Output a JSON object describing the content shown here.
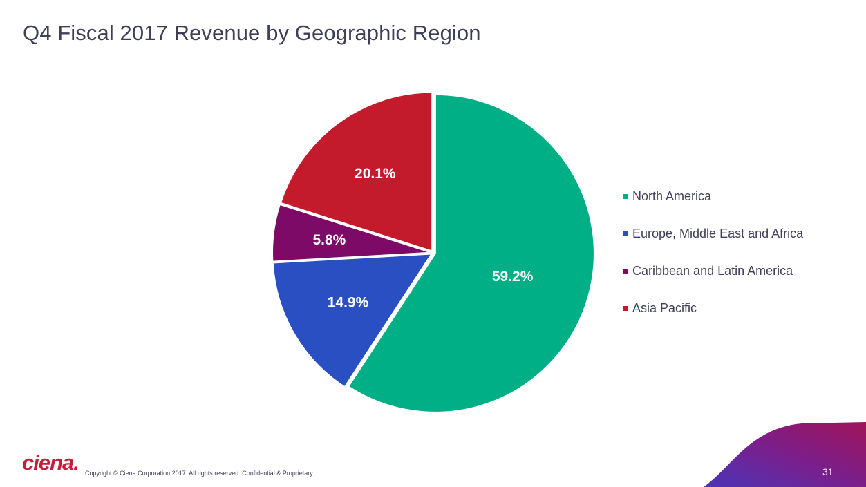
{
  "slide": {
    "title": "Q4 Fiscal 2017 Revenue by Geographic Region",
    "copyright": "Copyright © Ciena Corporation 2017. All rights reserved. Confidential & Proprietary.",
    "page_number": "31",
    "logo_text": "ciena."
  },
  "colors": {
    "north_america": "#00af85",
    "emea": "#2a4fc3",
    "cala": "#7d0a66",
    "apac": "#c41b2c",
    "brand_gradient_start": "#5a2fb0",
    "brand_gradient_end": "#a0145a"
  },
  "chart_data": {
    "type": "pie",
    "title": "Q4 Fiscal 2017 Revenue by Geographic Region",
    "categories": [
      "North America",
      "Europe, Middle East and Africa",
      "Caribbean and Latin America",
      "Asia Pacific"
    ],
    "values": [
      59.2,
      14.9,
      5.8,
      20.1
    ],
    "labels": [
      "59.2%",
      "14.9%",
      "5.8%",
      "20.1%"
    ],
    "colors": [
      "#00af85",
      "#2a4fc3",
      "#7d0a66",
      "#c41b2c"
    ],
    "start_angle": "12 o'clock",
    "direction": "clockwise",
    "legend_position": "right"
  }
}
